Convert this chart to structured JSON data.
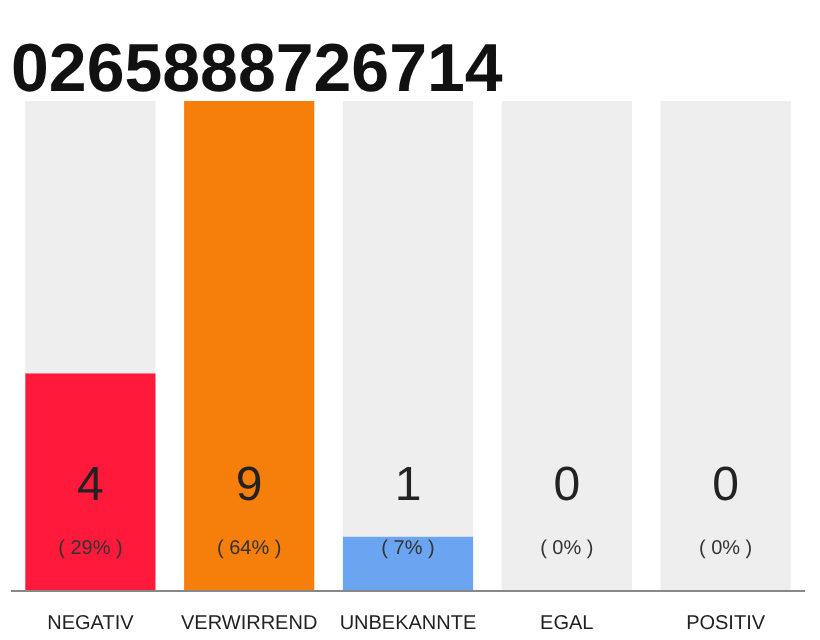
{
  "chart_data": {
    "type": "bar",
    "title": "0265888726714",
    "categories": [
      "NEGATIV",
      "VERWIRREND",
      "UNBEKANNTE",
      "EGAL",
      "POSITIV"
    ],
    "stacked": true,
    "series": [
      {
        "colors": [
          "#ff1a3c",
          "#f57f0a",
          "#6ba4f0",
          "#eeeeee",
          "#eeeeee"
        ],
        "values": [
          4,
          9,
          1,
          0,
          0
        ],
        "value_labels": [
          "4\n( 29% )",
          "9\n( 64% )",
          "1\n( 7% )",
          null,
          null
        ]
      },
      {
        "color": "#eeeeee",
        "values": [
          5,
          0,
          8,
          9,
          9
        ]
      }
    ],
    "ylim": [
      0,
      9
    ],
    "tick_labels": "x",
    "grid": false,
    "annotations": [
      {
        "text": "0\n( 0% )",
        "x": "EGAL",
        "y": 0
      },
      {
        "text": "0\n( 0% )",
        "x": "POSITIV",
        "y": 0
      }
    ]
  }
}
